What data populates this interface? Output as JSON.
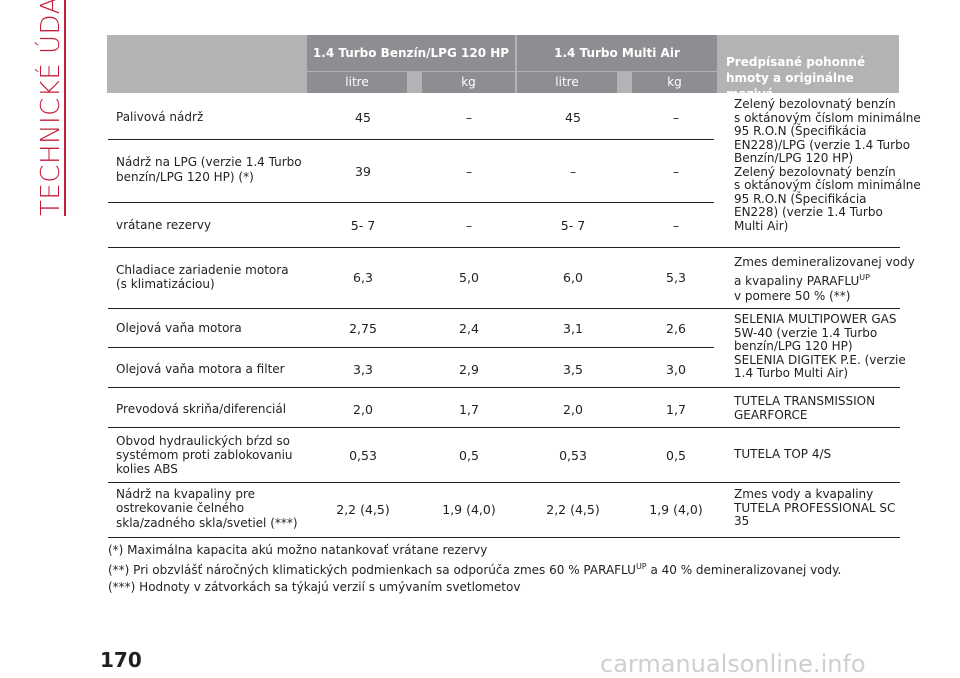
{
  "section_title": "TECHNICKÉ ÚDAJE",
  "header": {
    "col_turbo_lpg": "1.4 Turbo Benzín/LPG 120 HP",
    "col_multiair": "1.4 Turbo Multi Air",
    "col_fuel": "Predpísané pohonné hmoty a originálne mazivá",
    "unit_litre_1": "litre",
    "unit_kg_1": "kg",
    "unit_litre_2": "litre",
    "unit_kg_2": "kg"
  },
  "rows": [
    {
      "label": "Palivová nádrž",
      "v1": "45",
      "v2": "–",
      "v3": "45",
      "v4": "–"
    },
    {
      "label1": "Nádrž na LPG (verzie 1.4 Turbo",
      "label2": "benzín/LPG 120 HP) (*)",
      "v1": "39",
      "v2": "–",
      "v3": "–",
      "v4": "–"
    },
    {
      "label": "vrátane rezervy",
      "v1": "5- 7",
      "v2": "–",
      "v3": "5- 7",
      "v4": "–"
    },
    {
      "label1": "Chladiace zariadenie motora",
      "label2": "(s klimatizáciou)",
      "v1": "6,3",
      "v2": "5,0",
      "v3": "6,0",
      "v4": "5,3"
    },
    {
      "label": "Olejová vaňa motora",
      "v1": "2,75",
      "v2": "2,4",
      "v3": "3,1",
      "v4": "2,6"
    },
    {
      "label": "Olejová vaňa motora a filter",
      "v1": "3,3",
      "v2": "2,9",
      "v3": "3,5",
      "v4": "3,0"
    },
    {
      "label": "Prevodová skriňa/diferenciál",
      "v1": "2,0",
      "v2": "1,7",
      "v3": "2,0",
      "v4": "1,7"
    },
    {
      "label1": "Obvod hydraulických bŕzd so",
      "label2": "systémom proti zablokovaniu",
      "label3": "kolies ABS",
      "v1": "0,53",
      "v2": "0,5",
      "v3": "0,53",
      "v4": "0,5"
    },
    {
      "label1": "Nádrž na kvapaliny pre",
      "label2": "ostrekovanie čelného",
      "label3": "skla/zadného skla/svetiel (***)",
      "v1": "2,2 (4,5)",
      "v2": "1,9 (4,0)",
      "v3": "2,2 (4,5)",
      "v4": "1,9 (4,0)"
    }
  ],
  "fuel": {
    "fuel_1": [
      "Zelený bezolovnatý benzín",
      "s oktánovým číslom minimálne",
      "95 R.O.N (Špecifikácia",
      "EN228)/LPG (verzie 1.4 Turbo",
      "Benzín/LPG 120 HP)",
      "Zelený bezolovnatý benzín",
      "s oktánovým číslom minimálne",
      "95 R.O.N (Špecifikácia",
      "EN228) (verzie 1.4 Turbo",
      "Multi Air)"
    ],
    "coolant_1": "Zmes demineralizovanej vody",
    "coolant_2": "a kvapaliny PARAFLU",
    "coolant_sup": "UP",
    "coolant_3": "v pomere 50 % (**)",
    "oil": [
      "SELENIA MULTIPOWER GAS",
      "5W-40 (verzie 1.4 Turbo",
      "benzín/LPG 120 HP)",
      "SELENIA DIGITEK P.E. (verzie",
      "1.4 Turbo Multi Air)"
    ],
    "gear": [
      "TUTELA TRANSMISSION",
      "GEARFORCE"
    ],
    "brake": "TUTELA TOP 4/S",
    "washer": [
      "Zmes vody a kvapaliny",
      "TUTELA PROFESSIONAL SC",
      "35"
    ]
  },
  "notes": {
    "n1": "(*) Maximálna kapacita akú možno natankovať vrátane rezervy",
    "n2a": "(**) Pri obzvlášť náročných klimatických podmienkach sa odporúča zmes 60 % PARAFLU",
    "n2sup": "UP",
    "n2b": " a 40 % demineralizovanej vody.",
    "n3": "(***) Hodnoty v zátvorkách sa týkajú verzií s umývaním svetlometov"
  },
  "page_number": "170",
  "watermark": "carmanualsonline.info"
}
